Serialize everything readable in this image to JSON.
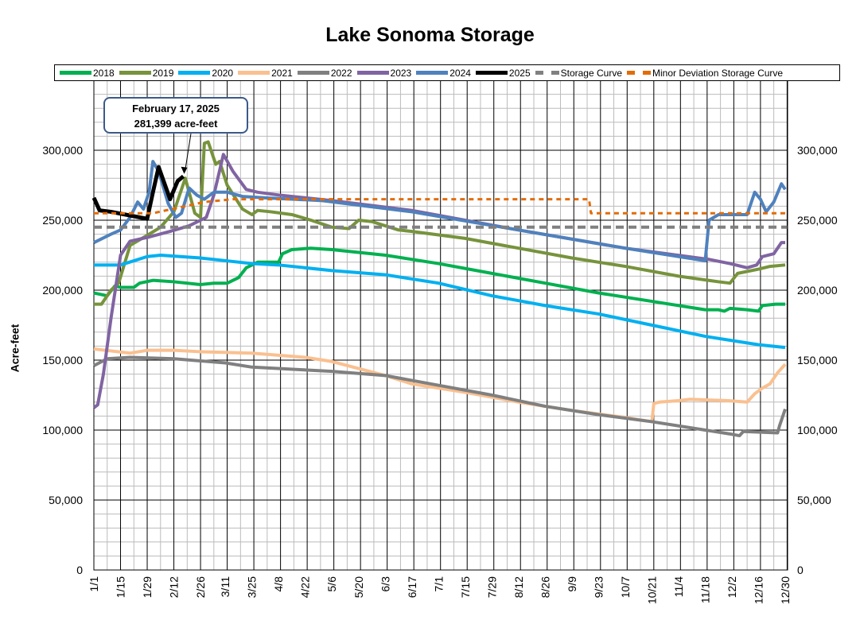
{
  "chart_data": {
    "type": "line",
    "title": "Lake Sonoma Storage",
    "ylabel": "Acre-feet",
    "ylim": [
      0,
      350000
    ],
    "yticks": [
      0,
      50000,
      100000,
      150000,
      200000,
      250000,
      300000
    ],
    "ytick_labels": [
      "0",
      "50,000",
      "100,000",
      "150,000",
      "200,000",
      "250,000",
      "300,000"
    ],
    "xtick_labels": [
      "1/1",
      "1/15",
      "1/29",
      "2/12",
      "2/26",
      "3/11",
      "3/25",
      "4/8",
      "4/22",
      "5/6",
      "5/20",
      "6/3",
      "6/17",
      "7/1",
      "7/15",
      "7/29",
      "8/12",
      "8/26",
      "9/9",
      "9/23",
      "10/7",
      "10/21",
      "11/4",
      "11/18",
      "12/2",
      "12/16",
      "12/30"
    ],
    "grid": true,
    "legend_position": "top",
    "annotation": {
      "line1": "February 17, 2025",
      "line2": "281,399 acre-feet",
      "date": "2/17",
      "value": 281399
    },
    "series": [
      {
        "name": "2018",
        "color": "#00b050",
        "width": 4,
        "dash": "",
        "points": [
          [
            "1/1",
            198000
          ],
          [
            "1/8",
            196000
          ],
          [
            "1/12",
            203000
          ],
          [
            "1/15",
            202000
          ],
          [
            "1/22",
            202000
          ],
          [
            "1/25",
            205000
          ],
          [
            "2/1",
            207000
          ],
          [
            "2/12",
            206000
          ],
          [
            "2/26",
            204000
          ],
          [
            "3/5",
            205000
          ],
          [
            "3/12",
            205000
          ],
          [
            "3/18",
            209000
          ],
          [
            "3/22",
            216000
          ],
          [
            "3/28",
            220000
          ],
          [
            "4/8",
            220000
          ],
          [
            "4/10",
            226000
          ],
          [
            "4/15",
            229000
          ],
          [
            "4/25",
            230000
          ],
          [
            "5/6",
            229000
          ],
          [
            "6/3",
            225000
          ],
          [
            "7/1",
            219000
          ],
          [
            "7/29",
            212000
          ],
          [
            "8/26",
            205000
          ],
          [
            "9/23",
            198000
          ],
          [
            "10/21",
            192000
          ],
          [
            "11/18",
            186000
          ],
          [
            "11/25",
            186000
          ],
          [
            "11/28",
            185000
          ],
          [
            "12/1",
            187000
          ],
          [
            "12/10",
            186000
          ],
          [
            "12/16",
            185000
          ],
          [
            "12/18",
            189000
          ],
          [
            "12/25",
            190000
          ],
          [
            "12/30",
            190000
          ]
        ]
      },
      {
        "name": "2019",
        "color": "#77933c",
        "width": 4,
        "dash": "",
        "points": [
          [
            "1/1",
            190000
          ],
          [
            "1/5",
            190000
          ],
          [
            "1/10",
            200000
          ],
          [
            "1/14",
            205000
          ],
          [
            "1/20",
            232000
          ],
          [
            "1/30",
            240000
          ],
          [
            "2/5",
            245000
          ],
          [
            "2/12",
            256000
          ],
          [
            "2/18",
            280000
          ],
          [
            "2/23",
            255000
          ],
          [
            "2/26",
            252000
          ],
          [
            "2/28",
            305000
          ],
          [
            "3/2",
            306000
          ],
          [
            "3/6",
            290000
          ],
          [
            "3/8",
            292000
          ],
          [
            "3/12",
            275000
          ],
          [
            "3/20",
            258000
          ],
          [
            "3/25",
            254000
          ],
          [
            "3/28",
            257000
          ],
          [
            "4/4",
            256000
          ],
          [
            "4/15",
            254000
          ],
          [
            "4/25",
            250000
          ],
          [
            "5/6",
            245000
          ],
          [
            "5/15",
            244000
          ],
          [
            "5/20",
            250000
          ],
          [
            "5/27",
            249000
          ],
          [
            "6/3",
            246000
          ],
          [
            "6/10",
            243000
          ],
          [
            "6/17",
            242000
          ],
          [
            "7/15",
            237000
          ],
          [
            "8/12",
            230000
          ],
          [
            "9/9",
            223000
          ],
          [
            "10/7",
            217000
          ],
          [
            "11/4",
            210000
          ],
          [
            "11/25",
            206000
          ],
          [
            "12/1",
            205000
          ],
          [
            "12/5",
            212000
          ],
          [
            "12/16",
            215000
          ],
          [
            "12/22",
            217000
          ],
          [
            "12/30",
            218000
          ]
        ]
      },
      {
        "name": "2020",
        "color": "#00b0f0",
        "width": 4,
        "dash": "",
        "points": [
          [
            "1/1",
            218000
          ],
          [
            "1/15",
            218000
          ],
          [
            "1/22",
            221000
          ],
          [
            "1/29",
            224000
          ],
          [
            "2/5",
            225000
          ],
          [
            "2/26",
            223000
          ],
          [
            "3/25",
            219000
          ],
          [
            "4/8",
            218000
          ],
          [
            "5/6",
            214000
          ],
          [
            "6/3",
            211000
          ],
          [
            "7/1",
            205000
          ],
          [
            "7/29",
            196000
          ],
          [
            "8/26",
            189000
          ],
          [
            "9/23",
            183000
          ],
          [
            "10/21",
            175000
          ],
          [
            "11/18",
            167000
          ],
          [
            "12/16",
            161000
          ],
          [
            "12/30",
            159000
          ]
        ]
      },
      {
        "name": "2021",
        "color": "#fac090",
        "width": 4,
        "dash": "",
        "points": [
          [
            "1/1",
            158000
          ],
          [
            "1/20",
            155000
          ],
          [
            "1/29",
            157000
          ],
          [
            "2/12",
            157000
          ],
          [
            "2/26",
            156000
          ],
          [
            "3/25",
            155000
          ],
          [
            "4/22",
            152000
          ],
          [
            "5/6",
            149000
          ],
          [
            "5/20",
            144000
          ],
          [
            "6/3",
            139000
          ],
          [
            "6/17",
            133000
          ],
          [
            "7/15",
            127000
          ],
          [
            "8/12",
            120000
          ],
          [
            "9/9",
            114000
          ],
          [
            "10/7",
            109000
          ],
          [
            "10/21",
            106000
          ],
          [
            "10/22",
            119000
          ],
          [
            "10/25",
            120000
          ],
          [
            "11/4",
            121000
          ],
          [
            "11/10",
            122000
          ],
          [
            "11/30",
            121000
          ],
          [
            "12/10",
            120000
          ],
          [
            "12/14",
            126000
          ],
          [
            "12/18",
            130000
          ],
          [
            "12/22",
            133000
          ],
          [
            "12/26",
            141000
          ],
          [
            "12/30",
            147000
          ]
        ]
      },
      {
        "name": "2022",
        "color": "#808080",
        "width": 4,
        "dash": "",
        "points": [
          [
            "1/1",
            146000
          ],
          [
            "1/8",
            151000
          ],
          [
            "1/20",
            152000
          ],
          [
            "2/12",
            151000
          ],
          [
            "3/11",
            148000
          ],
          [
            "3/25",
            145000
          ],
          [
            "4/22",
            143000
          ],
          [
            "5/6",
            142000
          ],
          [
            "6/3",
            139000
          ],
          [
            "7/1",
            132000
          ],
          [
            "7/29",
            125000
          ],
          [
            "8/26",
            117000
          ],
          [
            "9/23",
            111000
          ],
          [
            "10/21",
            106000
          ],
          [
            "11/18",
            100000
          ],
          [
            "12/2",
            97000
          ],
          [
            "12/6",
            96000
          ],
          [
            "12/8",
            99000
          ],
          [
            "12/26",
            98000
          ],
          [
            "12/27",
            103000
          ],
          [
            "12/30",
            115000
          ]
        ]
      },
      {
        "name": "2023",
        "color": "#8064a2",
        "width": 4,
        "dash": "",
        "points": [
          [
            "1/1",
            116000
          ],
          [
            "1/3",
            118000
          ],
          [
            "1/6",
            140000
          ],
          [
            "1/10",
            180000
          ],
          [
            "1/15",
            225000
          ],
          [
            "1/20",
            235000
          ],
          [
            "1/30",
            238000
          ],
          [
            "2/10",
            242000
          ],
          [
            "2/20",
            246000
          ],
          [
            "3/1",
            252000
          ],
          [
            "3/5",
            268000
          ],
          [
            "3/10",
            297000
          ],
          [
            "3/15",
            285000
          ],
          [
            "3/22",
            272000
          ],
          [
            "3/28",
            270000
          ],
          [
            "4/8",
            268000
          ],
          [
            "5/6",
            264000
          ],
          [
            "6/17",
            257000
          ],
          [
            "8/12",
            243000
          ],
          [
            "10/7",
            230000
          ],
          [
            "11/20",
            222000
          ],
          [
            "12/1",
            219000
          ],
          [
            "12/10",
            216000
          ],
          [
            "12/15",
            218000
          ],
          [
            "12/18",
            224000
          ],
          [
            "12/24",
            226000
          ],
          [
            "12/28",
            234000
          ],
          [
            "12/30",
            234000
          ]
        ]
      },
      {
        "name": "2024",
        "color": "#4f81bd",
        "width": 4,
        "dash": "",
        "points": [
          [
            "1/1",
            234000
          ],
          [
            "1/10",
            240000
          ],
          [
            "1/15",
            243000
          ],
          [
            "1/20",
            252000
          ],
          [
            "1/24",
            263000
          ],
          [
            "1/27",
            258000
          ],
          [
            "1/30",
            270000
          ],
          [
            "2/1",
            292000
          ],
          [
            "2/4",
            285000
          ],
          [
            "2/9",
            262000
          ],
          [
            "2/13",
            252000
          ],
          [
            "2/16",
            255000
          ],
          [
            "2/20",
            273000
          ],
          [
            "2/24",
            268000
          ],
          [
            "2/28",
            265000
          ],
          [
            "3/5",
            270000
          ],
          [
            "3/12",
            270000
          ],
          [
            "3/20",
            267000
          ],
          [
            "4/1",
            266000
          ],
          [
            "5/1",
            264000
          ],
          [
            "6/17",
            256000
          ],
          [
            "8/12",
            243000
          ],
          [
            "10/7",
            230000
          ],
          [
            "11/18",
            221000
          ],
          [
            "11/20",
            250000
          ],
          [
            "11/25",
            254000
          ],
          [
            "12/10",
            254000
          ],
          [
            "12/14",
            270000
          ],
          [
            "12/17",
            265000
          ],
          [
            "12/20",
            256000
          ],
          [
            "12/24",
            263000
          ],
          [
            "12/28",
            276000
          ],
          [
            "12/30",
            272000
          ]
        ]
      },
      {
        "name": "2025",
        "color": "#000000",
        "width": 5,
        "dash": "",
        "points": [
          [
            "1/1",
            266000
          ],
          [
            "1/4",
            257000
          ],
          [
            "1/10",
            256000
          ],
          [
            "1/29",
            251000
          ],
          [
            "2/1",
            270000
          ],
          [
            "2/4",
            288000
          ],
          [
            "2/10",
            265000
          ],
          [
            "2/14",
            278000
          ],
          [
            "2/17",
            281399
          ]
        ]
      },
      {
        "name": "Storage Curve",
        "color": "#808080",
        "width": 4,
        "dash": "10,6",
        "points": [
          [
            "1/1",
            245000
          ],
          [
            "12/31",
            245000
          ]
        ]
      },
      {
        "name": "Minor Deviation Storage Curve",
        "color": "#e36c09",
        "width": 3,
        "dash": "6,5",
        "points": [
          [
            "1/1",
            255000
          ],
          [
            "2/1",
            255000
          ],
          [
            "2/28",
            263000
          ],
          [
            "3/15",
            265000
          ],
          [
            "9/18",
            265000
          ],
          [
            "9/19",
            255000
          ],
          [
            "12/31",
            255000
          ]
        ]
      }
    ]
  }
}
